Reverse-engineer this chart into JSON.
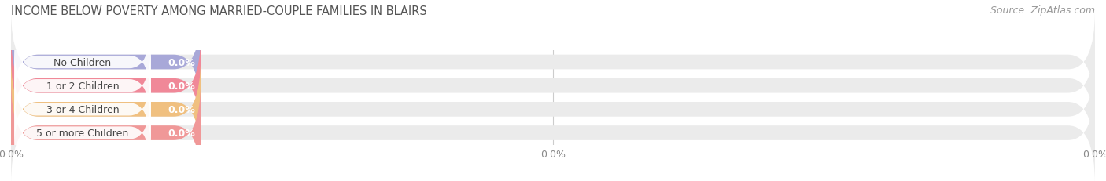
{
  "title": "INCOME BELOW POVERTY AMONG MARRIED-COUPLE FAMILIES IN BLAIRS",
  "source": "Source: ZipAtlas.com",
  "categories": [
    "No Children",
    "1 or 2 Children",
    "3 or 4 Children",
    "5 or more Children"
  ],
  "values": [
    0.0,
    0.0,
    0.0,
    0.0
  ],
  "bar_colors": [
    "#a8a8d8",
    "#f08898",
    "#f0c080",
    "#f09898"
  ],
  "bar_bg_color": "#ebebeb",
  "title_color": "#555555",
  "source_color": "#999999",
  "tick_color": "#bbbbbb",
  "tick_label_color": "#888888",
  "category_label_color": "#444444",
  "value_label_color": "#ffffff",
  "xlim_max": 100.0,
  "min_bar_pct": 17.5,
  "bar_height": 0.62,
  "figwidth": 14.06,
  "figheight": 2.32,
  "title_fontsize": 10.5,
  "label_fontsize": 9,
  "value_fontsize": 9,
  "tick_fontsize": 9,
  "source_fontsize": 9,
  "xticks": [
    0.0,
    50.0,
    100.0
  ],
  "xtick_labels": [
    "0.0%",
    "0.0%",
    "0.0%"
  ],
  "grid_color": "#cccccc",
  "grid_linewidth": 0.8
}
